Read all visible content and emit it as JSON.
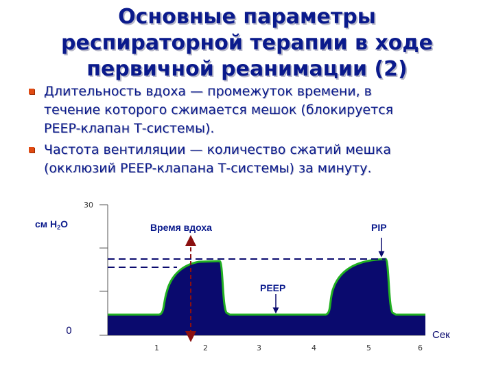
{
  "slide": {
    "title_lines": [
      "Основные параметры",
      "респираторной терапии в ходе",
      "первичной реанимации (2)"
    ],
    "bullets": [
      {
        "lines": [
          "Длительность вдоха — промежуток времени, в",
          "течение которого сжимается мешок (блокируется",
          "PEEP-клапан Т-системы)."
        ]
      },
      {
        "lines": [
          "Частота вентиляции — количество сжатий мешка",
          "(окклюзий PEEP-клапана Т-системы) за минуту."
        ]
      }
    ],
    "bullet_color": "#e04a12",
    "text_color": "#0a1a8c"
  },
  "diagram": {
    "y_unit_main": "см H",
    "y_unit_sub": "2",
    "y_unit_tail": "O",
    "y_max_label": "30",
    "y_zero_label": "0",
    "x_unit": "Сек",
    "x_ticks": [
      "1",
      "2",
      "3",
      "4",
      "5",
      "6"
    ],
    "inspiration_label": "Время вдоха",
    "pip_label": "PIP",
    "peep_label": "PEEP",
    "fill_color": "#0a0a6e",
    "curve_color": "#22b022",
    "arrow_color": "#8b1010",
    "dash_color": "#0a0a6e"
  }
}
